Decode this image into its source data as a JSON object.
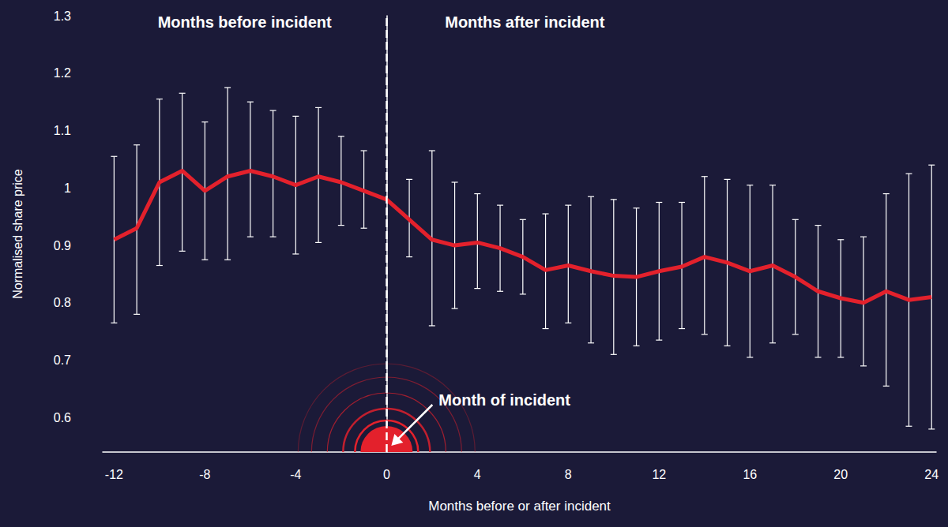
{
  "chart_data": {
    "type": "line",
    "x_label": "Months before or after incident",
    "y_label": "Normalised share price",
    "annotations": [
      "Months before incident",
      "Months after incident",
      "Month of incident"
    ],
    "incident_x": 0,
    "x": [
      -12,
      -11,
      -10,
      -9,
      -8,
      -7,
      -6,
      -5,
      -4,
      -3,
      -2,
      -1,
      0,
      1,
      2,
      3,
      4,
      5,
      6,
      7,
      8,
      9,
      10,
      11,
      12,
      13,
      14,
      15,
      16,
      17,
      18,
      19,
      20,
      21,
      22,
      23,
      24
    ],
    "values": [
      0.91,
      0.93,
      1.01,
      1.03,
      0.995,
      1.02,
      1.03,
      1.02,
      1.005,
      1.02,
      1.01,
      0.995,
      0.98,
      0.945,
      0.91,
      0.9,
      0.905,
      0.895,
      0.88,
      0.857,
      0.865,
      0.855,
      0.847,
      0.845,
      0.855,
      0.863,
      0.88,
      0.87,
      0.855,
      0.865,
      0.845,
      0.82,
      0.808,
      0.8,
      0.82,
      0.805,
      0.81
    ],
    "error_low": [
      0.765,
      0.78,
      0.865,
      0.89,
      0.875,
      0.875,
      0.915,
      0.915,
      0.885,
      0.905,
      0.935,
      0.93,
      null,
      0.88,
      0.76,
      0.79,
      0.825,
      0.82,
      0.815,
      0.755,
      0.765,
      0.73,
      0.71,
      0.725,
      0.735,
      0.755,
      0.745,
      0.725,
      0.705,
      0.73,
      0.745,
      0.705,
      0.705,
      0.69,
      0.655,
      0.585,
      0.58
    ],
    "error_high": [
      1.055,
      1.075,
      1.155,
      1.165,
      1.115,
      1.175,
      1.15,
      1.135,
      1.125,
      1.14,
      1.09,
      1.065,
      null,
      1.015,
      1.065,
      1.01,
      0.99,
      0.97,
      0.945,
      0.955,
      0.97,
      0.985,
      0.98,
      0.965,
      0.975,
      0.975,
      1.02,
      1.015,
      1.005,
      1.005,
      0.945,
      0.935,
      0.91,
      0.915,
      0.99,
      1.025,
      1.04
    ],
    "color": "#e3212c",
    "xlim": [
      -12.5,
      24.2
    ],
    "ylim": [
      0.54,
      1.3
    ],
    "xticks": [
      -12,
      -8,
      -4,
      0,
      4,
      8,
      12,
      16,
      20,
      24
    ],
    "yticks": [
      0.6,
      0.7,
      0.8,
      0.9,
      1,
      1.1,
      1.2,
      1.3
    ],
    "grid": false
  }
}
